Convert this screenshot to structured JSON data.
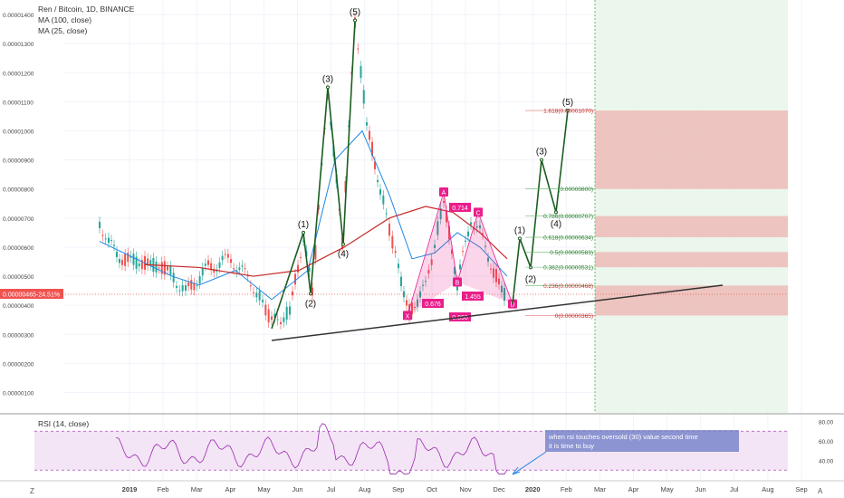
{
  "header": {
    "title": "Ren / Bitcoin, 1D, BINANCE",
    "ma_100": "MA (100, close)",
    "ma_25": "MA (25, close)"
  },
  "price_axis": {
    "ticks": [
      "0.00001400",
      "0.00001300",
      "0.00001200",
      "0.00001100",
      "0.00001000",
      "0.00000900",
      "0.00000800",
      "0.00000700",
      "0.00000600",
      "0.00000500",
      "0.00000400",
      "0.00000300",
      "0.00000200",
      "0.00000100"
    ],
    "tick_values": [
      1400,
      1300,
      1200,
      1100,
      1000,
      900,
      800,
      700,
      600,
      500,
      400,
      300,
      200,
      100
    ],
    "current_price_label": "0.00000465",
    "current_change_label": "-24.51%",
    "current_price": 465
  },
  "time_axis": {
    "labels": [
      "2019",
      "Feb",
      "Mar",
      "Apr",
      "May",
      "Jun",
      "Jul",
      "Aug",
      "Sep",
      "Oct",
      "Nov",
      "Dec",
      "2020",
      "Feb",
      "Mar",
      "Apr",
      "May",
      "Jun",
      "Jul",
      "Aug",
      "Sep"
    ],
    "bold": [
      "2019",
      "2020"
    ]
  },
  "colors": {
    "candle_up": "#26a69a",
    "candle_down": "#ef5350",
    "ma100": "#c62828",
    "ma25": "#1e88e5",
    "wave": "#1b5e20",
    "harmonic": "#e91e8c",
    "trendline": "#333333",
    "target_zone": "#e8f5e9",
    "stop_zone": "#ef9a9a",
    "rsi": "#9c27b0"
  },
  "chart_data": {
    "type": "candlestick",
    "y_unit": "BTC",
    "ylim": [
      30,
      1450
    ],
    "elliott_waves": [
      {
        "label": "(1)",
        "price": 650
      },
      {
        "label": "(2)",
        "price": 440
      },
      {
        "label": "(3)",
        "price": 1150
      },
      {
        "label": "(4)",
        "price": 610
      },
      {
        "label": "(5)",
        "price": 1380
      }
    ],
    "projected_waves": [
      {
        "label": "(1)",
        "price": 630
      },
      {
        "label": "(2)",
        "price": 530
      },
      {
        "label": "(3)",
        "price": 900
      },
      {
        "label": "(4)",
        "price": 720
      },
      {
        "label": "(5)",
        "price": 1070
      }
    ],
    "harmonic_points": [
      {
        "label": "X",
        "price": 365
      },
      {
        "label": "A",
        "price": 790
      },
      {
        "label": "B",
        "price": 480
      },
      {
        "label": "C",
        "price": 720
      },
      {
        "label": "D",
        "price": 405
      }
    ],
    "harmonic_ratios": [
      "0.714",
      "0.676",
      "1.455",
      "0.890"
    ],
    "fib_levels": [
      {
        "label": "1.618(0.00001070)",
        "value": 1070
      },
      {
        "label": "(0.00000800)",
        "value": 800
      },
      {
        "label": "0.786(0.00000707)",
        "value": 707
      },
      {
        "label": "0.618(0.00000634)",
        "value": 634
      },
      {
        "label": "0.5(0.00000583)",
        "value": 583
      },
      {
        "label": "0.382(0.00000531)",
        "value": 531
      },
      {
        "label": "0.236(0.00000468)",
        "value": 468
      },
      {
        "label": "0(0.00000365)",
        "value": 365
      }
    ],
    "rsi": {
      "title": "RSI (14, close)",
      "ticks": [
        "80.00",
        "60.00",
        "40.00"
      ],
      "tick_values": [
        80,
        60,
        40
      ],
      "ylim": [
        20,
        85
      ],
      "bands": [
        30,
        70
      ],
      "annotation": "when rsi touches oversold (30) value second time it is time to buy"
    }
  }
}
